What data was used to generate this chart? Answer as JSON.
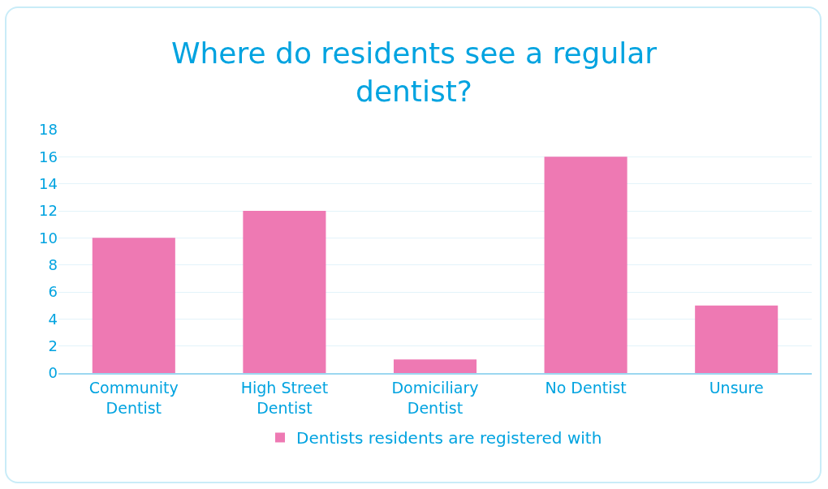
{
  "chart_data": {
    "type": "bar",
    "title": "Where do residents see a regular dentist?",
    "categories": [
      "Community Dentist",
      "High Street Dentist",
      "Domiciliary Dentist",
      "No Dentist",
      "Unsure"
    ],
    "series": [
      {
        "name": "Dentists residents are registered with",
        "color": "#ee79b3",
        "values": [
          10,
          12,
          1,
          16,
          5
        ]
      }
    ],
    "ylim": [
      0,
      18
    ],
    "yticks": [
      0,
      2,
      4,
      6,
      8,
      10,
      12,
      14,
      16,
      18
    ],
    "grid": "y",
    "legend": "bottom"
  }
}
